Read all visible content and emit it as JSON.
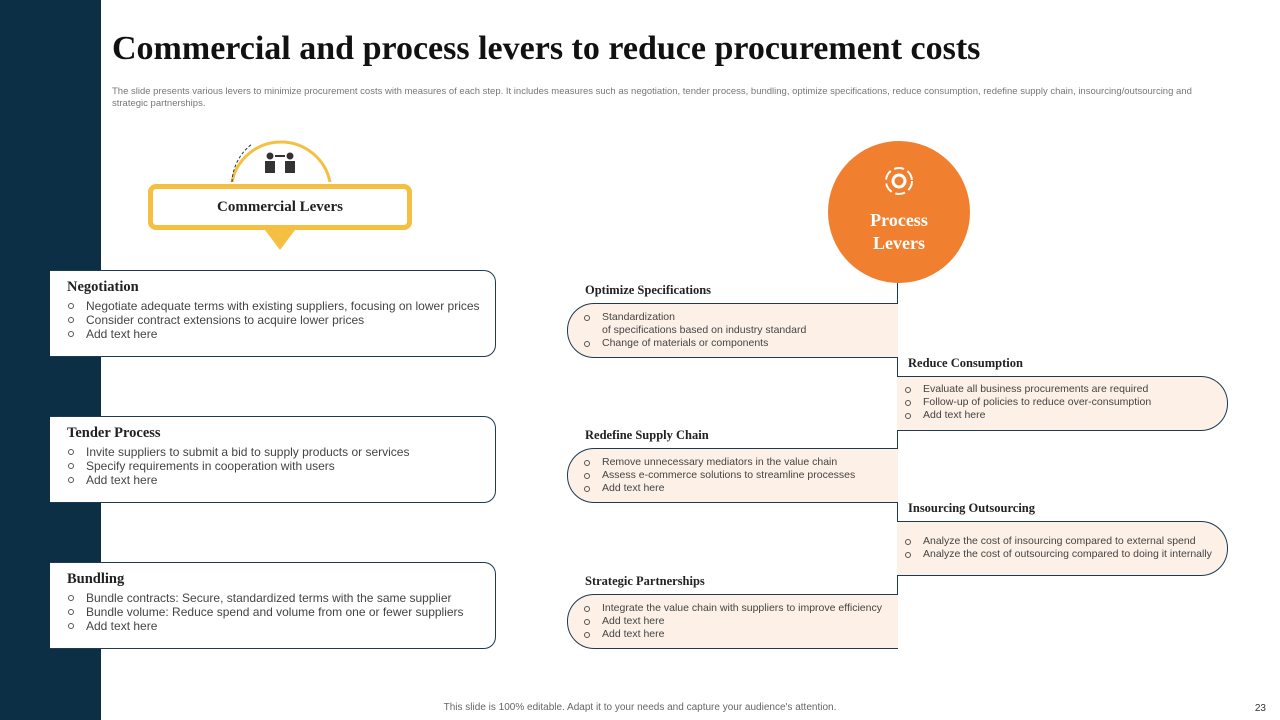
{
  "header": {
    "title": "Commercial and process levers to reduce procurement costs",
    "description": "The slide presents various levers to minimize  procurement costs with measures of each step. It includes measures such as negotiation, tender process, bundling, optimize specifications, reduce consumption, redefine supply chain, insourcing/outsourcing and strategic partnerships."
  },
  "commercial": {
    "label": "Commercial Levers",
    "items": [
      {
        "title": "Negotiation",
        "bullets": [
          "Negotiate adequate terms with existing suppliers, focusing on lower prices",
          "Consider contract extensions to acquire lower prices",
          "Add text here"
        ]
      },
      {
        "title": "Tender Process",
        "bullets": [
          "Invite suppliers to submit a bid to supply products or services",
          "Specify requirements in cooperation with users",
          "Add text here"
        ]
      },
      {
        "title": "Bundling",
        "bullets": [
          "Bundle contracts: Secure, standardized terms with the same supplier",
          "Bundle volume: Reduce spend and volume from one or fewer suppliers",
          "Add text here"
        ]
      }
    ]
  },
  "process": {
    "label": "Process Levers",
    "items": [
      {
        "title": "Optimize Specifications",
        "bullets": [
          "Standardization\nof specifications based on industry standard",
          "Change of materials or components"
        ]
      },
      {
        "title": "Reduce Consumption",
        "bullets": [
          "Evaluate  all business procurements are required",
          "Follow-up of policies to reduce over-consumption",
          "Add text here"
        ]
      },
      {
        "title": "Redefine Supply Chain",
        "bullets": [
          "Remove unnecessary mediators in the value chain",
          "Assess e-commerce solutions to streamline processes",
          "Add text here"
        ]
      },
      {
        "title": "Insourcing Outsourcing",
        "bullets": [
          "Analyze the cost of insourcing compared to external spend",
          "Analyze the cost of outsourcing compared to doing it internally"
        ]
      },
      {
        "title": "Strategic Partnerships",
        "bullets": [
          "Integrate the value chain with suppliers to improve efficiency",
          "Add text here",
          "Add text here"
        ]
      }
    ]
  },
  "footer": {
    "note": "This slide is 100% editable.  Adapt it to your needs and capture your audience's attention.",
    "page_number": "23"
  }
}
